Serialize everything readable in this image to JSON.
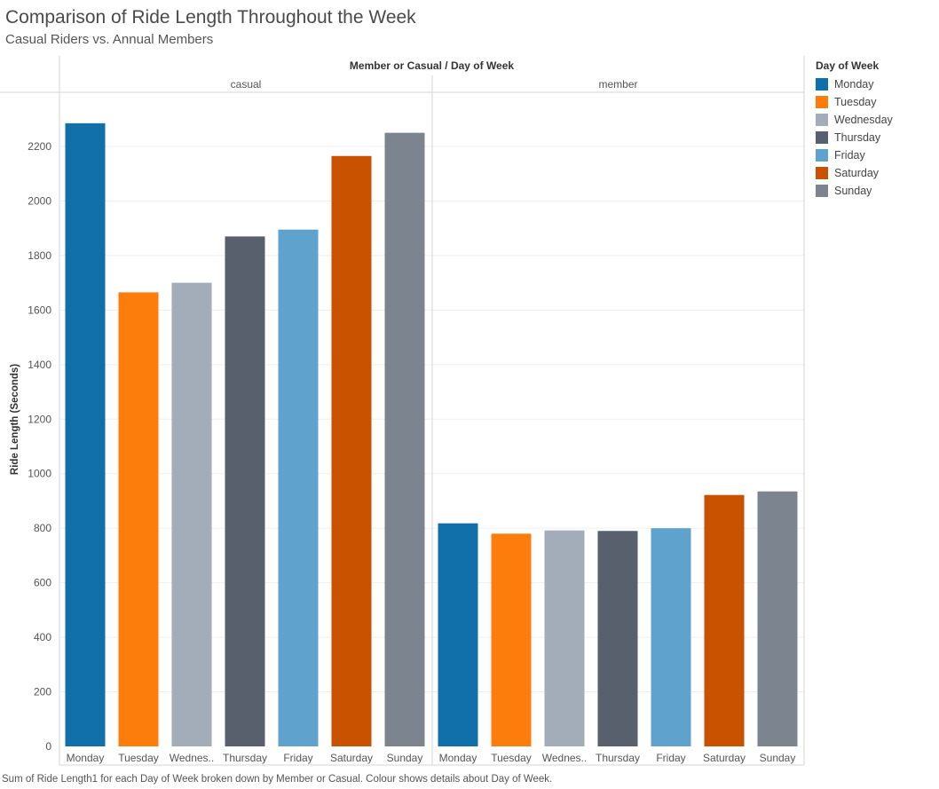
{
  "chart_data": {
    "type": "bar",
    "title": "Comparison of Ride Length Throughout the Week",
    "subtitle": "Casual Riders vs. Annual Members",
    "header_title": "Member or Casual  /  Day of Week",
    "ylabel": "Ride Length (Seconds)",
    "ylim": [
      0,
      2300
    ],
    "yticks": [
      0,
      200,
      400,
      600,
      800,
      1000,
      1200,
      1400,
      1600,
      1800,
      2000,
      2200
    ],
    "grid": true,
    "categories": [
      "Monday",
      "Tuesday",
      "Wednes..",
      "Thursday",
      "Friday",
      "Saturday",
      "Sunday"
    ],
    "panels": [
      {
        "name": "casual",
        "values": [
          2285,
          1665,
          1700,
          1870,
          1895,
          2165,
          2250
        ]
      },
      {
        "name": "member",
        "values": [
          818,
          780,
          792,
          790,
          800,
          922,
          935
        ]
      }
    ],
    "legend": {
      "title": "Day of Week",
      "placement": "right",
      "items": [
        {
          "label": "Monday",
          "color": "#1170aa"
        },
        {
          "label": "Tuesday",
          "color": "#fc7d0b"
        },
        {
          "label": "Wednesday",
          "color": "#a3acb9"
        },
        {
          "label": "Thursday",
          "color": "#57606c"
        },
        {
          "label": "Friday",
          "color": "#5fa2ce"
        },
        {
          "label": "Saturday",
          "color": "#c85200"
        },
        {
          "label": "Sunday",
          "color": "#7b848f"
        }
      ]
    },
    "footer": "Sum of Ride Length1 for each Day of Week broken down by Member or Casual. Colour shows details about Day of Week."
  }
}
